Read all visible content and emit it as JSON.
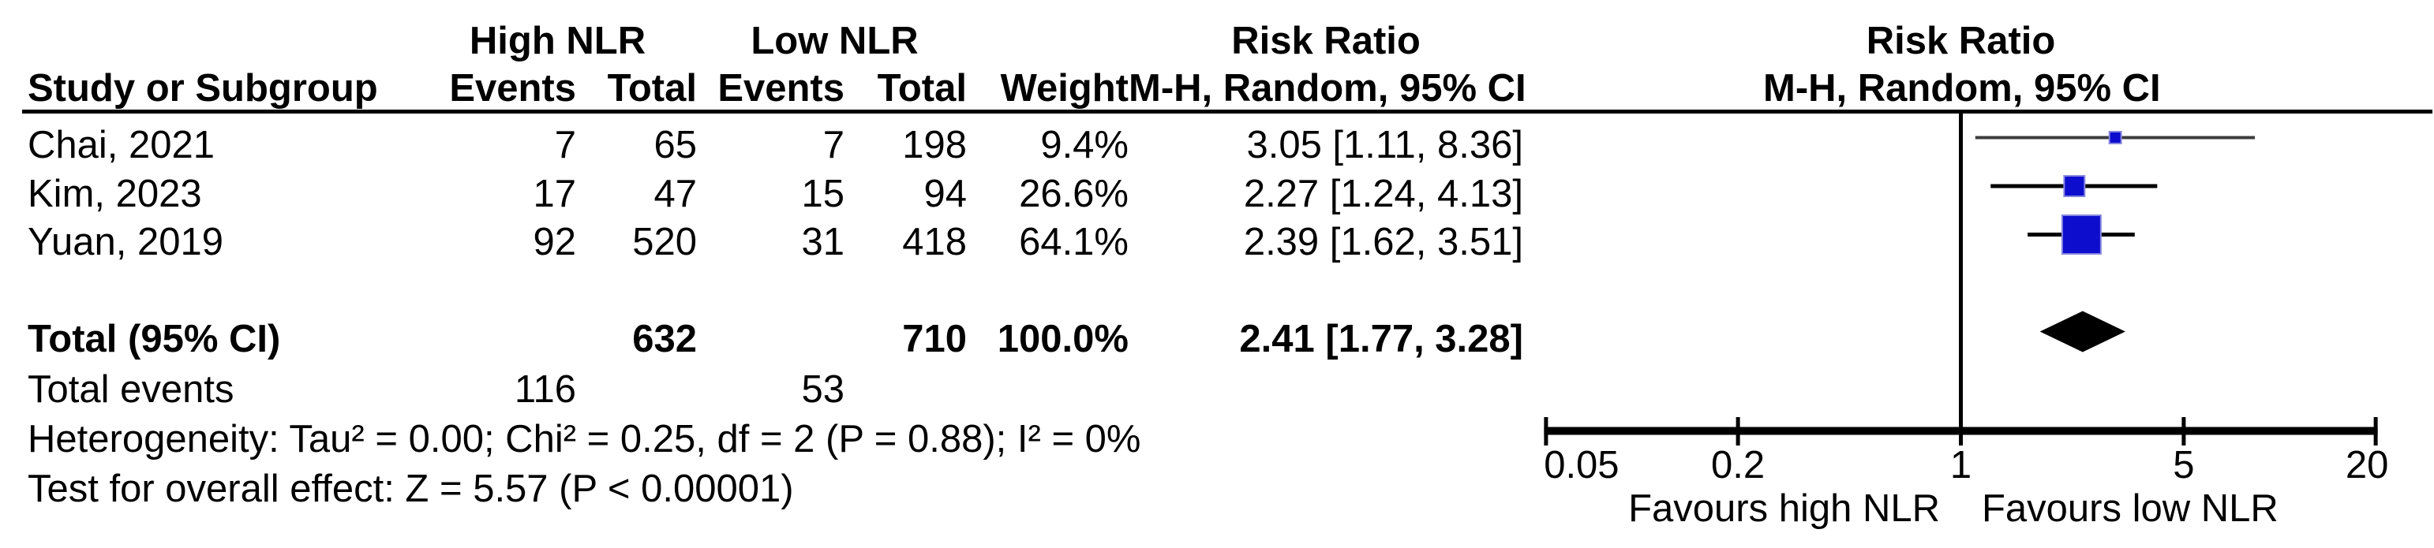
{
  "table": {
    "group_headers": {
      "high": "High NLR",
      "low": "Low NLR",
      "risk_ratio": "Risk Ratio",
      "risk_ratio_right": "Risk Ratio"
    },
    "col_headers": {
      "study": "Study or Subgroup",
      "events_high": "Events",
      "total_high": "Total",
      "events_low": "Events",
      "total_low": "Total",
      "weight": "Weight",
      "ci": "M-H, Random, 95% CI",
      "ci_right": "M-H, Random, 95% CI"
    },
    "rows": [
      {
        "study": "Chai, 2021",
        "events1": "7",
        "total1": "65",
        "events2": "7",
        "total2": "198",
        "weight": "9.4%",
        "ci": "3.05 [1.11, 8.36]"
      },
      {
        "study": "Kim, 2023",
        "events1": "17",
        "total1": "47",
        "events2": "15",
        "total2": "94",
        "weight": "26.6%",
        "ci": "2.27 [1.24, 4.13]"
      },
      {
        "study": "Yuan, 2019",
        "events1": "92",
        "total1": "520",
        "events2": "31",
        "total2": "418",
        "weight": "64.1%",
        "ci": "2.39 [1.62, 3.51]"
      }
    ],
    "total_row": {
      "label": "Total (95% CI)",
      "total1": "632",
      "total2": "710",
      "weight": "100.0%",
      "ci": "2.41 [1.77, 3.28]"
    },
    "total_events": {
      "label": "Total events",
      "high": "116",
      "low": "53"
    },
    "heterogeneity": "Heterogeneity: Tau² = 0.00; Chi² = 0.25, df = 2 (P = 0.88); I² = 0%",
    "overall_effect": "Test for overall effect: Z = 5.57 (P < 0.00001)"
  },
  "chart_data": {
    "type": "forest",
    "effect_measure": "Risk Ratio",
    "model": "M-H, Random, 95% CI",
    "x_scale": "log10",
    "x_range": [
      0.05,
      20
    ],
    "x_ticks": [
      {
        "value": 0.05,
        "label": "0.05"
      },
      {
        "value": 0.2,
        "label": "0.2"
      },
      {
        "value": 1,
        "label": "1"
      },
      {
        "value": 5,
        "label": "5"
      },
      {
        "value": 20,
        "label": "20"
      }
    ],
    "favours_left": "Favours high NLR",
    "favours_right": "Favours low NLR",
    "studies": [
      {
        "name": "Chai, 2021",
        "rr": 3.05,
        "ci_low": 1.11,
        "ci_high": 8.36,
        "weight_pct": 9.4,
        "marker_px": 15,
        "line_color": "#3d3d3d",
        "line_width": 4
      },
      {
        "name": "Kim, 2023",
        "rr": 2.27,
        "ci_low": 1.24,
        "ci_high": 4.13,
        "weight_pct": 26.6,
        "marker_px": 26,
        "line_color": "#000000",
        "line_width": 5
      },
      {
        "name": "Yuan, 2019",
        "rr": 2.39,
        "ci_low": 1.62,
        "ci_high": 3.51,
        "weight_pct": 64.1,
        "marker_px": 49,
        "line_color": "#000000",
        "line_width": 5
      }
    ],
    "total": {
      "rr": 2.41,
      "ci_low": 1.77,
      "ci_high": 3.28
    },
    "heterogeneity": {
      "tau2": 0.0,
      "chi2": 0.25,
      "df": 2,
      "p": 0.88,
      "i2_pct": 0
    },
    "overall_effect": {
      "z": 5.57,
      "p": "< 0.00001"
    },
    "colors": {
      "marker_fill": "#0d0dce",
      "marker_border": "#8888e0",
      "diamond": "#000000",
      "axis": "#000000",
      "text": "#000000"
    }
  }
}
